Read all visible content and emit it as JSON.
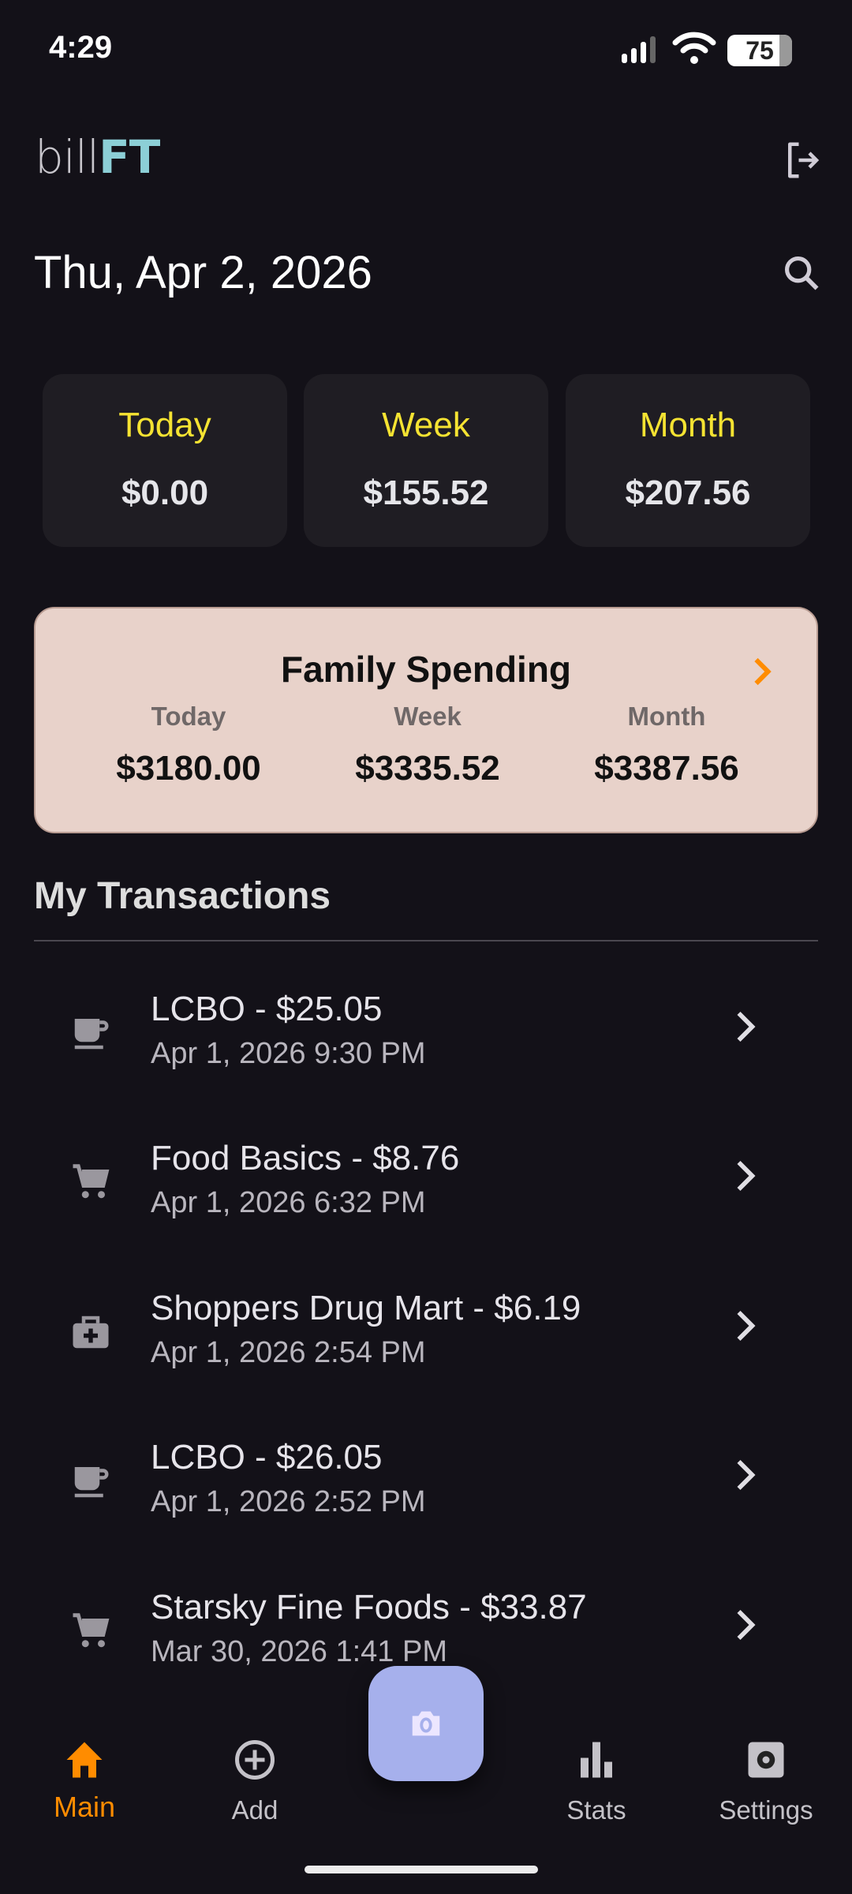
{
  "status_bar": {
    "time": "4:29",
    "battery": "75"
  },
  "app": {
    "logo_light": "bill",
    "logo_bold": "FT"
  },
  "header": {
    "date": "Thu, Apr 2, 2026"
  },
  "summary": [
    {
      "label": "Today",
      "value": "$0.00"
    },
    {
      "label": "Week",
      "value": "$155.52"
    },
    {
      "label": "Month",
      "value": "$207.56"
    }
  ],
  "family": {
    "title": "Family Spending",
    "cols": [
      {
        "label": "Today",
        "value": "$3180.00"
      },
      {
        "label": "Week",
        "value": "$3335.52"
      },
      {
        "label": "Month",
        "value": "$3387.56"
      }
    ]
  },
  "section_title": "My Transactions",
  "transactions": [
    {
      "title": "LCBO - $25.05",
      "date": "Apr 1, 2026 9:30 PM",
      "icon": "coffee-icon"
    },
    {
      "title": "Food Basics - $8.76",
      "date": "Apr 1, 2026 6:32 PM",
      "icon": "cart-icon"
    },
    {
      "title": "Shoppers Drug Mart - $6.19",
      "date": "Apr 1, 2026 2:54 PM",
      "icon": "medical-bag-icon"
    },
    {
      "title": "LCBO - $26.05",
      "date": "Apr 1, 2026 2:52 PM",
      "icon": "coffee-icon"
    },
    {
      "title": "Starsky Fine Foods - $33.87",
      "date": "Mar 30, 2026 1:41 PM",
      "icon": "cart-icon"
    }
  ],
  "nav": {
    "main": "Main",
    "add": "Add",
    "stats": "Stats",
    "settings": "Settings"
  },
  "colors": {
    "accent": "#ff8c00",
    "highlight": "#f5e332",
    "family_bg": "#e8d2ca",
    "fab": "#a6b0ec",
    "logo": "#8ccfd6"
  }
}
